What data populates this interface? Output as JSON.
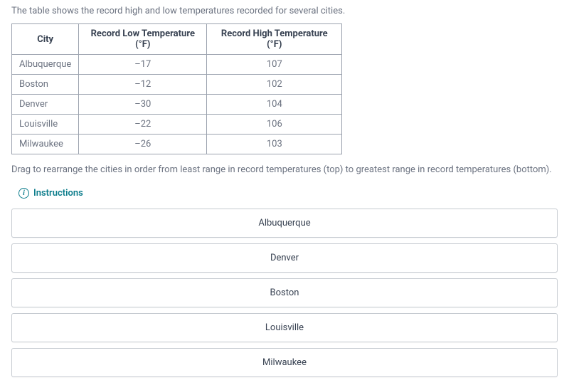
{
  "intro": "The table shows the record high and low temperatures recorded for several cities.",
  "table": {
    "columns": [
      "City",
      "Record Low Temperature (°F)",
      "Record High Temperature (°F)"
    ],
    "rows": [
      [
        "Albuquerque",
        "–17",
        "107"
      ],
      [
        "Boston",
        "–12",
        "102"
      ],
      [
        "Denver",
        "–30",
        "104"
      ],
      [
        "Louisville",
        "–22",
        "106"
      ],
      [
        "Milwaukee",
        "–26",
        "103"
      ]
    ],
    "col_widths": [
      "90px",
      "180px",
      "190px"
    ]
  },
  "instruction": "Drag to rearrange the cities in order from least range in record temperatures (top) to greatest range in record temperatures (bottom).",
  "instructions_label": "Instructions",
  "drag_items": [
    "Albuquerque",
    "Denver",
    "Boston",
    "Louisville",
    "Milwaukee"
  ],
  "colors": {
    "text_muted": "#6b7280",
    "border": "#9ca3af",
    "accent": "#0d7d8c",
    "item_border": "#c6cbd1"
  }
}
